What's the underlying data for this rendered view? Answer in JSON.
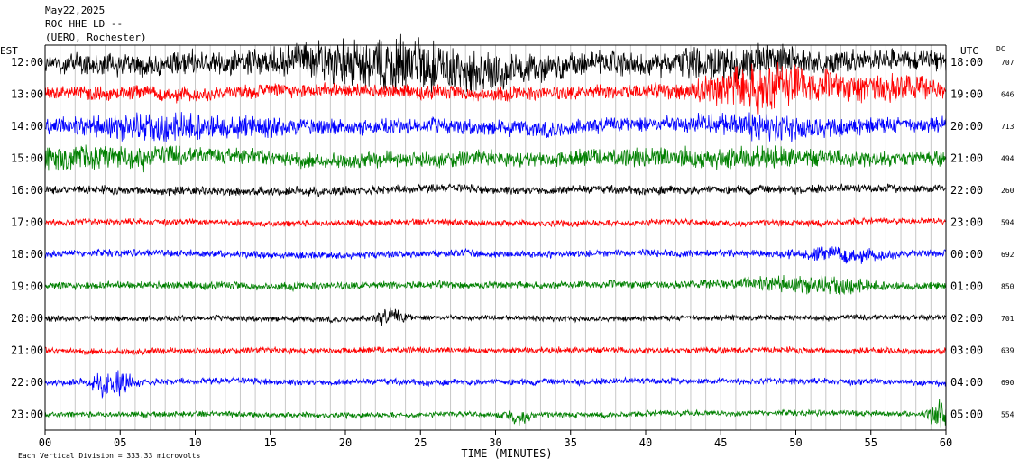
{
  "chart_data": {
    "type": "line",
    "title": "May22,2025",
    "station_line": "ROC HHE LD --",
    "station_name": "(UERO, Rochester)",
    "left_tz": "EST",
    "right_tz": "UTC",
    "dc_label": "DC",
    "xlabel": "TIME (MINUTES)",
    "x_ticks": [
      "00",
      "05",
      "10",
      "15",
      "20",
      "25",
      "30",
      "35",
      "40",
      "45",
      "50",
      "55",
      "60"
    ],
    "xlim": [
      0,
      60
    ],
    "scale_note": "Each Vertical Division =  333.33 microvolts",
    "color_cycle": [
      "#000000",
      "#ff0000",
      "#0000ff",
      "#008000"
    ],
    "rows": [
      {
        "est": "12:00",
        "utc": "18:00",
        "dc": "707",
        "color": "#000000",
        "amp": 1.6,
        "events": [
          {
            "t": 24,
            "w": 7,
            "a": 2.2
          },
          {
            "t": 46,
            "w": 4,
            "a": 1.0
          }
        ]
      },
      {
        "est": "13:00",
        "utc": "19:00",
        "dc": "646",
        "color": "#ff0000",
        "amp": 1.0,
        "events": [
          {
            "t": 48,
            "w": 4,
            "a": 2.8
          },
          {
            "t": 56,
            "w": 3,
            "a": 1.2
          }
        ]
      },
      {
        "est": "14:00",
        "utc": "20:00",
        "dc": "713",
        "color": "#0000ff",
        "amp": 1.1,
        "events": [
          {
            "t": 8,
            "w": 6,
            "a": 1.0
          },
          {
            "t": 48,
            "w": 5,
            "a": 0.8
          }
        ]
      },
      {
        "est": "15:00",
        "utc": "21:00",
        "dc": "494",
        "color": "#008000",
        "amp": 1.1,
        "events": [
          {
            "t": 3,
            "w": 6,
            "a": 0.7
          },
          {
            "t": 45,
            "w": 6,
            "a": 0.6
          }
        ]
      },
      {
        "est": "16:00",
        "utc": "22:00",
        "dc": "260",
        "color": "#000000",
        "amp": 0.6,
        "events": []
      },
      {
        "est": "17:00",
        "utc": "23:00",
        "dc": "594",
        "color": "#ff0000",
        "amp": 0.45,
        "events": []
      },
      {
        "est": "18:00",
        "utc": "00:00",
        "dc": "692",
        "color": "#0000ff",
        "amp": 0.5,
        "events": [
          {
            "t": 53,
            "w": 3,
            "a": 0.6
          }
        ]
      },
      {
        "est": "19:00",
        "utc": "01:00",
        "dc": "850",
        "color": "#008000",
        "amp": 0.55,
        "events": [
          {
            "t": 49,
            "w": 3,
            "a": 0.7
          },
          {
            "t": 53,
            "w": 2,
            "a": 0.7
          }
        ]
      },
      {
        "est": "20:00",
        "utc": "02:00",
        "dc": "701",
        "color": "#000000",
        "amp": 0.4,
        "events": [
          {
            "t": 23,
            "w": 1,
            "a": 0.9
          }
        ]
      },
      {
        "est": "21:00",
        "utc": "03:00",
        "dc": "639",
        "color": "#ff0000",
        "amp": 0.45,
        "events": []
      },
      {
        "est": "22:00",
        "utc": "04:00",
        "dc": "690",
        "color": "#0000ff",
        "amp": 0.45,
        "events": [
          {
            "t": 4.5,
            "w": 1.2,
            "a": 1.6
          }
        ]
      },
      {
        "est": "23:00",
        "utc": "05:00",
        "dc": "554",
        "color": "#008000",
        "amp": 0.4,
        "events": [
          {
            "t": 31.5,
            "w": 0.8,
            "a": 0.8
          },
          {
            "t": 59.5,
            "w": 0.6,
            "a": 1.8
          }
        ]
      }
    ]
  }
}
